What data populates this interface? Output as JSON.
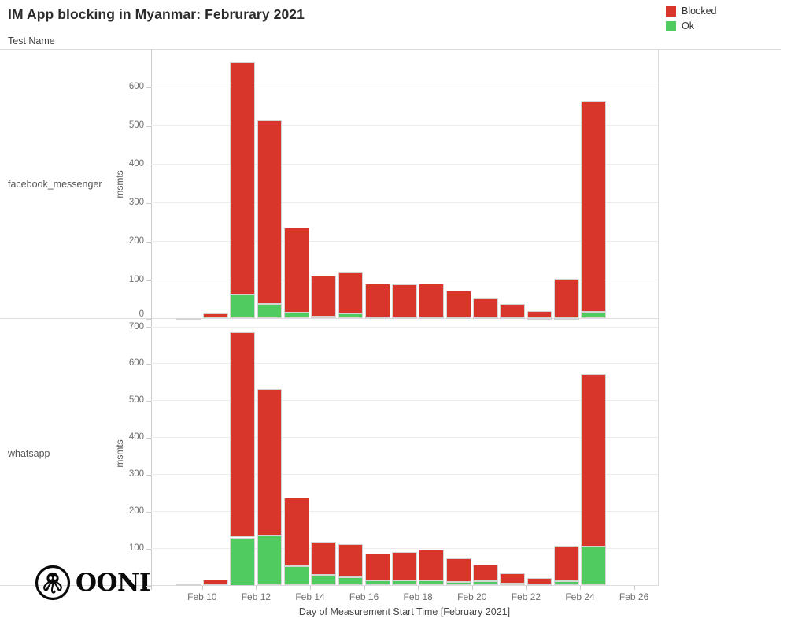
{
  "title": "IM App blocking in Myanmar: Februrary 2021",
  "facet_header": "Test Name",
  "legend": {
    "position": "top-right",
    "items": [
      {
        "label": "Blocked",
        "color": "#d8352b"
      },
      {
        "label": "Ok",
        "color": "#50cb60"
      }
    ]
  },
  "logo_text": "OONI",
  "chart_data": {
    "type": "bar",
    "stacked": true,
    "grid": "horizontal",
    "legend_position": "top-right",
    "xlabel": "Day of Measurement Start Time [February 2021]",
    "x_month": "February 2021",
    "days": [
      9,
      10,
      11,
      12,
      13,
      14,
      15,
      16,
      17,
      18,
      19,
      20,
      21,
      22,
      23,
      24
    ],
    "x_tick_labels": [
      "Feb 10",
      "Feb 12",
      "Feb 14",
      "Feb 16",
      "Feb 18",
      "Feb 20",
      "Feb 22",
      "Feb 24",
      "Feb 26"
    ],
    "series_colors": {
      "Blocked": "#d8352b",
      "Ok": "#50cb60"
    },
    "facets": [
      {
        "test_name": "facebook_messenger",
        "ylabel": "msmts",
        "ylim": [
          0,
          695
        ],
        "y_ticks": [
          0,
          100,
          200,
          300,
          400,
          500,
          600
        ],
        "series": [
          {
            "name": "Blocked",
            "values": [
              2,
              13,
              602,
              475,
              220,
              106,
              106,
              87,
              86,
              88,
              69,
              49,
              34,
              19,
              102,
              546
            ]
          },
          {
            "name": "Ok",
            "values": [
              0,
              0,
              62,
              38,
              16,
              6,
              13,
              4,
              3,
              3,
              3,
              3,
              3,
              1,
              2,
              18
            ]
          }
        ],
        "totals": [
          2,
          13,
          664,
          513,
          236,
          112,
          119,
          91,
          89,
          91,
          72,
          52,
          37,
          20,
          104,
          564
        ]
      },
      {
        "test_name": "whatsapp",
        "ylabel": "msmts",
        "ylim": [
          0,
          715
        ],
        "y_ticks": [
          0,
          100,
          200,
          300,
          400,
          500,
          600,
          700
        ],
        "series": [
          {
            "name": "Blocked",
            "values": [
              3,
              15,
              555,
              397,
              184,
              90,
              89,
              74,
              77,
              85,
              63,
              45,
              29,
              17,
              96,
              467
            ]
          },
          {
            "name": "Ok",
            "values": [
              0,
              0,
              130,
              135,
              53,
              28,
              23,
              13,
              14,
              13,
              10,
              12,
              5,
              3,
              12,
              105
            ]
          }
        ],
        "totals": [
          3,
          15,
          685,
          532,
          237,
          118,
          112,
          87,
          91,
          98,
          73,
          57,
          34,
          20,
          108,
          572
        ]
      }
    ]
  }
}
